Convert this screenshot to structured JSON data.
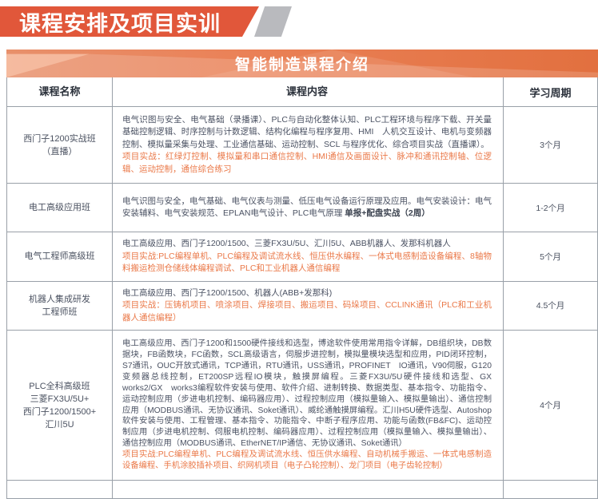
{
  "banner": {
    "title": "课程安排及项目实训"
  },
  "section": {
    "title": "智能制造课程介绍"
  },
  "colors": {
    "banner_bg": "#e1573a",
    "banner_accent_gray": "#b9babe",
    "band_orange": "#e2703f",
    "project_text_orange": "#ea7848",
    "body_text": "#4b5263",
    "border_gray": "#99a0a8"
  },
  "table": {
    "headers": [
      "课程名称",
      "课程内容",
      "学习周期"
    ],
    "rows": [
      {
        "name": "西门子1200实战班\n（直播）",
        "content": "电气识图与安全、电气基础（录播课）、PLC与自动化整体认知、PLC工程环境与程序下载、开关量基础控制逻辑、时序控制与计数逻辑、结构化编程与程序复用、HMI　人机交互设计、电机与变频器控制、模拟量采集与处理、工业通信基础、运动控制、SCL 与程序优化、综合项目实战（直播课）。",
        "content_bold": "",
        "project": "项目实战：红绿灯控制、模拟量和串口通信控制、HMI通信及画面设计、脉冲和通讯控制轴、位逻辑、运动控制，通信综合练习",
        "period": "3个月"
      },
      {
        "name": "电工高级应用班",
        "content": "电气识图与安全，电气基础、电气仪表与测量、低压电气设备运行原理及应用。电气安装设计：电气安装辅料、电气安装规范、EPLAN电气设计、PLC电气原理 ",
        "content_bold": "单报+配盘实战（2周）",
        "project": "",
        "period": "1-2个月"
      },
      {
        "name": "电气工程师高级班",
        "content": "电工高级应用、西门子1200/1500、三菱FX3U/5U、汇川5U、ABB机器人、发那科机器人",
        "content_bold": "",
        "project": "项目实战:PLC编程单机、PLC编程及调试流水线、恒压供水编程、一体式电感制造设备编程、8轴物料搬运检测仓储线体编程调试、PLC和工业机器人通信编程",
        "period": "5个月"
      },
      {
        "name": "机器人集成研发\n工程师班",
        "content": "电工高级应用、西门子1200/1500、机器人(ABB+发那科)",
        "content_bold": "",
        "project": "项目实战：压铸机项目、喷涂项目、焊接项目、搬运项目、码垛项目、CCLINK通讯（PLC和工业机器人通信编程）",
        "period": "4.5个月"
      },
      {
        "name": "PLC全科高级班\n三菱FX3U/5U+\n西门子1200/1500+\n汇川5U",
        "content": "电工高级应用、西门子1200和1500硬件接线和选型，博途软件使用常用指令详解，DB组织块，DB数据块，FB函数块，FC函数，SCL高级语言，伺服步进控制，模拟量模块选型和应用，PID闭环控制，S7通讯，OUC开放式通讯，TCP通讯，RTU通讯，USS通讯，PROFINET　IO通讯，V90伺服，G120变频器总线控制，ET200SP远程IO模块，触摸屏编程。三菱FX3U/5U硬件接线和选型、GX works2/GX　works3编程软件安装与使用、软件介绍、进制转换、数据类型、基本指令、功能指令、运动控制应用（步进电机控制、编码器应用）、过程控制应用（模拟量输入、模拟量输出）、通信控制应用（MODBUS通讯、无协议通讯、Soket通讯）、威纶通触摸屏编程。汇川H5U硬件选型、Autoshop软件安装与使用、工程管理、基本指令、功能指令、中断子程序应用、功能与函数(FB&FC)、运动控制应用（步进电机控制、伺服电机控制、编码器应用）、过程控制应用（模拟量输入、模拟量输出）、通信控制应用（MODBUS通讯、EtherNET/IP通信、无协议通讯、Soket通讯）",
        "content_bold": "",
        "project": "项目实战:PLC编程单机、PLC编程及调试流水线、恒压供水编程、自动机械手搬运、一体式电感制造设备编程、手机涂胶插补项目、织网机项目（电子凸轮控制）、龙门项目（电子齿轮控制）",
        "period": "4个月"
      },
      {
        "name": "",
        "content": "",
        "content_bold": "",
        "project": "",
        "period": ""
      }
    ]
  }
}
